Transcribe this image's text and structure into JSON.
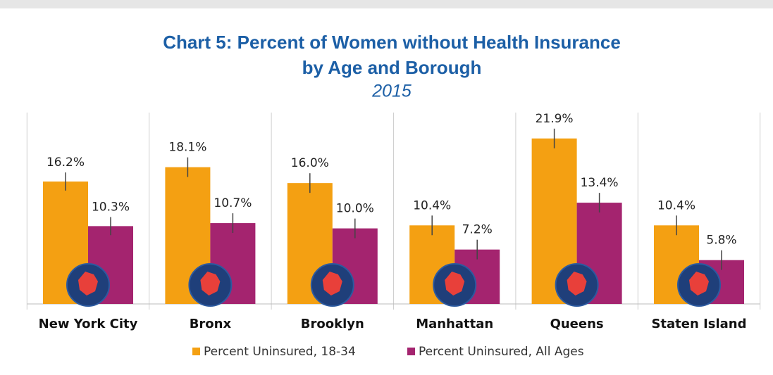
{
  "chart_data": {
    "type": "bar",
    "title": "Chart 5: Percent of Women without Health Insurance",
    "title_line2": "by Age and Borough",
    "subtitle": "2015",
    "categories": [
      "New York City",
      "Bronx",
      "Brooklyn",
      "Manhattan",
      "Queens",
      "Staten Island"
    ],
    "series": [
      {
        "name": "Percent Uninsured, 18-34",
        "color": "#f4a012",
        "values": [
          16.2,
          18.1,
          16.0,
          10.4,
          21.9,
          10.4
        ],
        "value_labels": [
          "16.2%",
          "18.1%",
          "16.0%",
          "10.4%",
          "21.9%",
          "10.4%"
        ],
        "errors": [
          1.2,
          1.3,
          1.3,
          1.3,
          1.3,
          1.3
        ]
      },
      {
        "name": "Percent Uninsured, All Ages",
        "color": "#a4246f",
        "values": [
          10.3,
          10.7,
          10.0,
          7.2,
          13.4,
          5.8
        ],
        "value_labels": [
          "10.3%",
          "10.7%",
          "10.0%",
          "7.2%",
          "13.4%",
          "5.8%"
        ],
        "errors": [
          1.2,
          1.3,
          1.3,
          1.3,
          1.3,
          1.3
        ]
      }
    ]
  }
}
